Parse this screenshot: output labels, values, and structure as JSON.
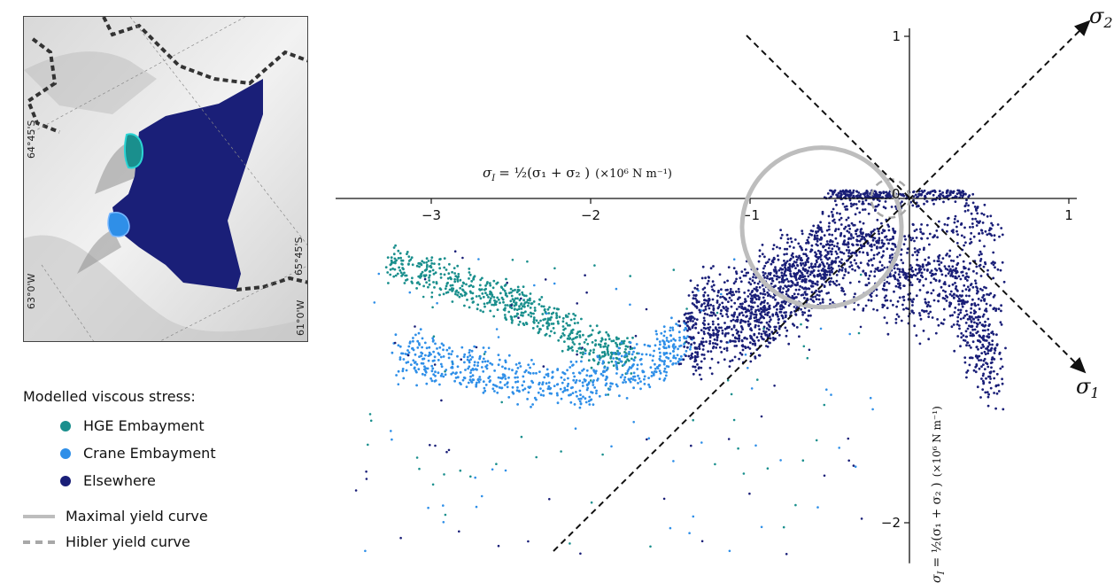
{
  "map": {
    "lat_labels": [
      "64°45'S",
      "65°45'S"
    ],
    "lon_labels": [
      "63°0'W",
      "61°0'W"
    ]
  },
  "legend": {
    "title": "Modelled viscous stress:",
    "items": [
      {
        "label": "HGE Embayment",
        "color": "#1a8f8d"
      },
      {
        "label": "Crane Embayment",
        "color": "#2f8fe8"
      },
      {
        "label": "Elsewhere",
        "color": "#1a1f78"
      }
    ],
    "curves": [
      {
        "label": "Maximal yield curve",
        "color": "#bdbdbd",
        "style": "solid"
      },
      {
        "label": "Hibler yield curve",
        "color": "#a8a8a8",
        "style": "dashed"
      }
    ]
  },
  "chart_data": {
    "type": "scatter",
    "x_axis_label_prefix": "σ",
    "x_axis_label_sub": "I",
    "x_axis_label_expr": "= ½(σ₁ + σ₂ )",
    "x_axis_label_units": "(×10⁶ N m⁻¹)",
    "y_axis_label_prefix": "σ",
    "y_axis_label_sub": "I",
    "y_axis_label_expr": "= ½(σ₁ + σ₂ )",
    "y_axis_label_units": "(×10⁶ N m⁻¹)",
    "x_ticks": [
      "−3",
      "−2",
      "−1",
      "0",
      "1"
    ],
    "x_tick_values": [
      -3,
      -2,
      -1,
      0,
      1
    ],
    "y_ticks": [
      "1",
      "−2"
    ],
    "y_tick_values": [
      1,
      -2
    ],
    "xlim": [
      -3.6,
      1.05
    ],
    "ylim": [
      -2.25,
      1.05
    ],
    "sigma1_label": "σ",
    "sigma1_sub": "1",
    "sigma2_label": "σ",
    "sigma2_sub": "2",
    "origin_label": "0",
    "maximal_yield_curve": {
      "center": [
        -0.55,
        -0.2
      ],
      "radius": 0.5
    },
    "hibler_yield_curve": {
      "center": [
        -0.12,
        0.0
      ],
      "radius": 0.12
    },
    "series": [
      {
        "name": "HGE Embayment",
        "color": "#1a8f8d",
        "spine_x": [
          -3.25,
          -2.9,
          -2.6,
          -2.3,
          -2.0,
          -1.75
        ],
        "spine_y": [
          -0.4,
          -0.5,
          -0.6,
          -0.72,
          -0.9,
          -0.96
        ]
      },
      {
        "name": "Crane Embayment",
        "color": "#2f8fe8",
        "spine_x": [
          -3.2,
          -2.8,
          -2.4,
          -2.0,
          -1.6,
          -1.4
        ],
        "spine_y": [
          -0.95,
          -1.05,
          -1.12,
          -1.15,
          -1.0,
          -0.85
        ]
      },
      {
        "name": "Elsewhere",
        "color": "#1a1f78",
        "spine_x": [
          -1.4,
          -1.0,
          -0.7,
          -0.4,
          -0.1,
          0.3,
          0.55
        ],
        "spine_y": [
          -0.8,
          -0.7,
          -0.5,
          -0.3,
          -0.5,
          -0.6,
          -1.1
        ]
      }
    ]
  }
}
